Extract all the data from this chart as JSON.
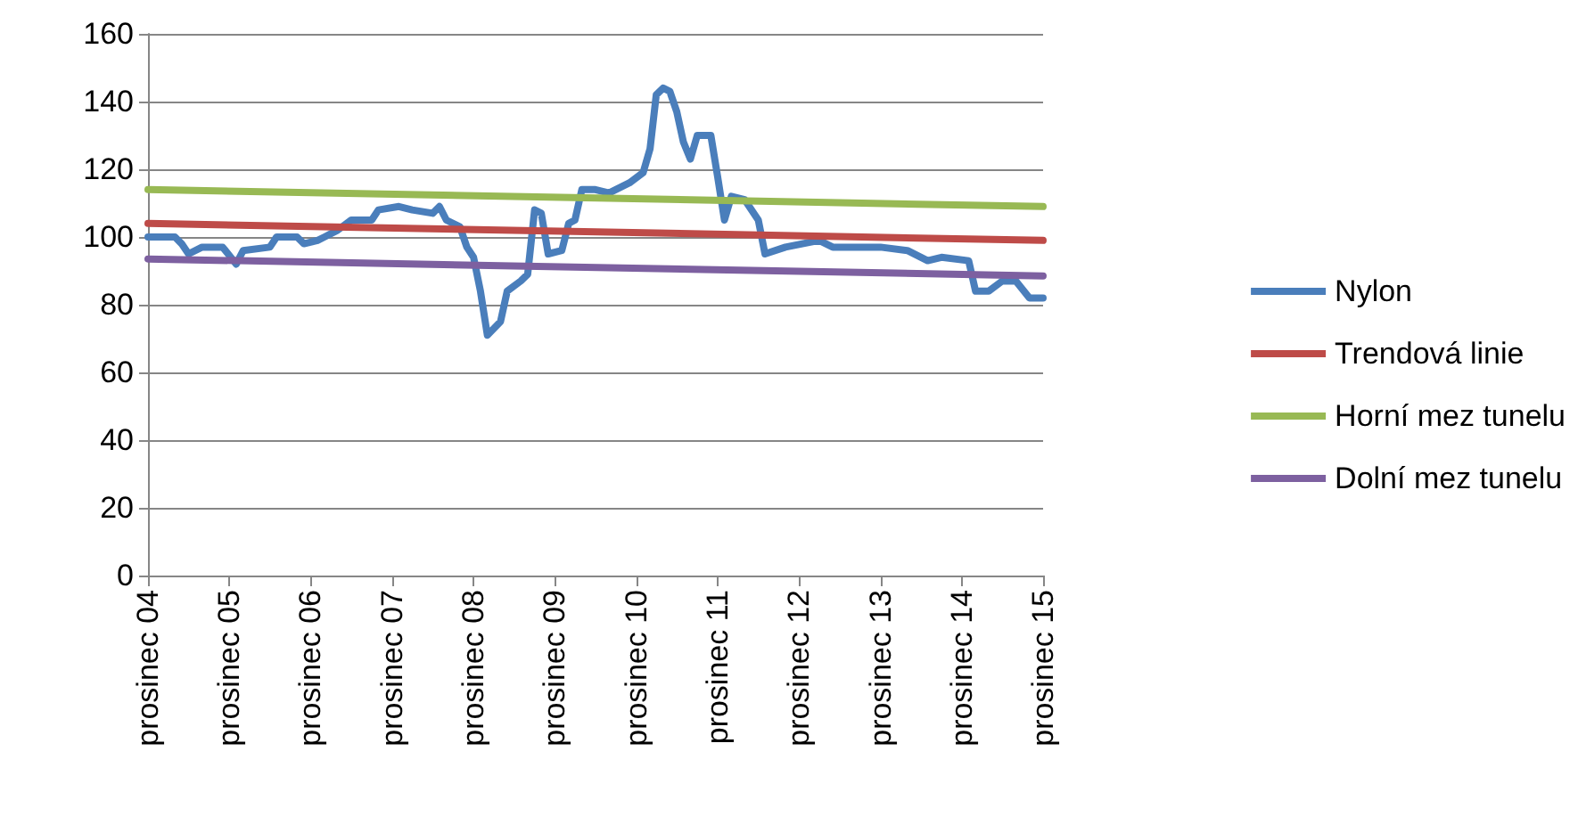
{
  "chart_data": {
    "type": "line",
    "marker": "none",
    "line_style": "solid",
    "grid": "y",
    "legend": "right",
    "ylim": [
      0,
      160
    ],
    "yticks": [
      0,
      20,
      40,
      60,
      80,
      100,
      120,
      140,
      160
    ],
    "xlim": [
      "2004-12",
      "2015-12"
    ],
    "xticks": [
      {
        "value": "2004-12",
        "label": "prosinec 04"
      },
      {
        "value": "2005-12",
        "label": "prosinec 05"
      },
      {
        "value": "2006-12",
        "label": "prosinec 06"
      },
      {
        "value": "2007-12",
        "label": "prosinec 07"
      },
      {
        "value": "2008-12",
        "label": "prosinec 08"
      },
      {
        "value": "2009-12",
        "label": "prosinec 09"
      },
      {
        "value": "2010-12",
        "label": "prosinec 10"
      },
      {
        "value": "2011-12",
        "label": "prosinec 11"
      },
      {
        "value": "2012-12",
        "label": "prosinec 12"
      },
      {
        "value": "2013-12",
        "label": "prosinec 13"
      },
      {
        "value": "2014-12",
        "label": "prosinec 14"
      },
      {
        "value": "2015-12",
        "label": "prosinec 15"
      }
    ],
    "series": [
      {
        "name": "Nylon",
        "color": "#4a7ebb",
        "x": [
          "2004-12",
          "2005-04",
          "2005-05",
          "2005-06",
          "2005-08",
          "2005-11",
          "2006-01",
          "2006-02",
          "2006-06",
          "2006-07",
          "2006-10",
          "2006-11",
          "2007-01",
          "2007-02",
          "2007-04",
          "2007-06",
          "2007-09",
          "2007-10",
          "2008-01",
          "2008-03",
          "2008-06",
          "2008-07",
          "2008-08",
          "2008-10",
          "2008-11",
          "2008-12",
          "2009-01",
          "2009-02",
          "2009-04",
          "2009-05",
          "2009-07",
          "2009-08",
          "2009-09",
          "2009-10",
          "2009-11",
          "2010-01",
          "2010-02",
          "2010-03",
          "2010-04",
          "2010-06",
          "2010-08",
          "2010-11",
          "2011-01",
          "2011-02",
          "2011-03",
          "2011-04",
          "2011-05",
          "2011-06",
          "2011-07",
          "2011-08",
          "2011-09",
          "2011-11",
          "2011-12",
          "2012-01",
          "2012-02",
          "2012-04",
          "2012-06",
          "2012-07",
          "2012-10",
          "2013-03",
          "2013-05",
          "2013-12",
          "2014-04",
          "2014-07",
          "2014-09",
          "2015-01",
          "2015-02",
          "2015-04",
          "2015-06",
          "2015-08",
          "2015-10",
          "2015-12"
        ],
        "values": [
          100,
          100,
          98,
          95,
          97,
          97,
          92,
          96,
          97,
          100,
          100,
          98,
          99,
          100,
          102,
          105,
          105,
          108,
          109,
          108,
          107,
          109,
          105,
          103,
          97,
          94,
          84,
          71,
          75,
          84,
          87,
          89,
          108,
          107,
          95,
          96,
          104,
          105,
          114,
          114,
          113,
          116,
          119,
          126,
          142,
          144,
          143,
          137,
          128,
          123,
          130,
          130,
          118,
          105,
          112,
          111,
          105,
          95,
          97,
          99,
          97,
          97,
          96,
          93,
          94,
          93,
          84,
          84,
          87,
          87,
          82,
          82
        ]
      },
      {
        "name": "Trendová linie",
        "color": "#be4b48",
        "x": [
          "2004-12",
          "2015-12"
        ],
        "values": [
          104,
          99
        ]
      },
      {
        "name": "Horní mez tunelu",
        "color": "#98b954",
        "x": [
          "2004-12",
          "2015-12"
        ],
        "values": [
          114,
          109
        ]
      },
      {
        "name": "Dolní mez tunelu",
        "color": "#7d60a0",
        "x": [
          "2004-12",
          "2015-12"
        ],
        "values": [
          93.5,
          88.5
        ]
      }
    ]
  }
}
